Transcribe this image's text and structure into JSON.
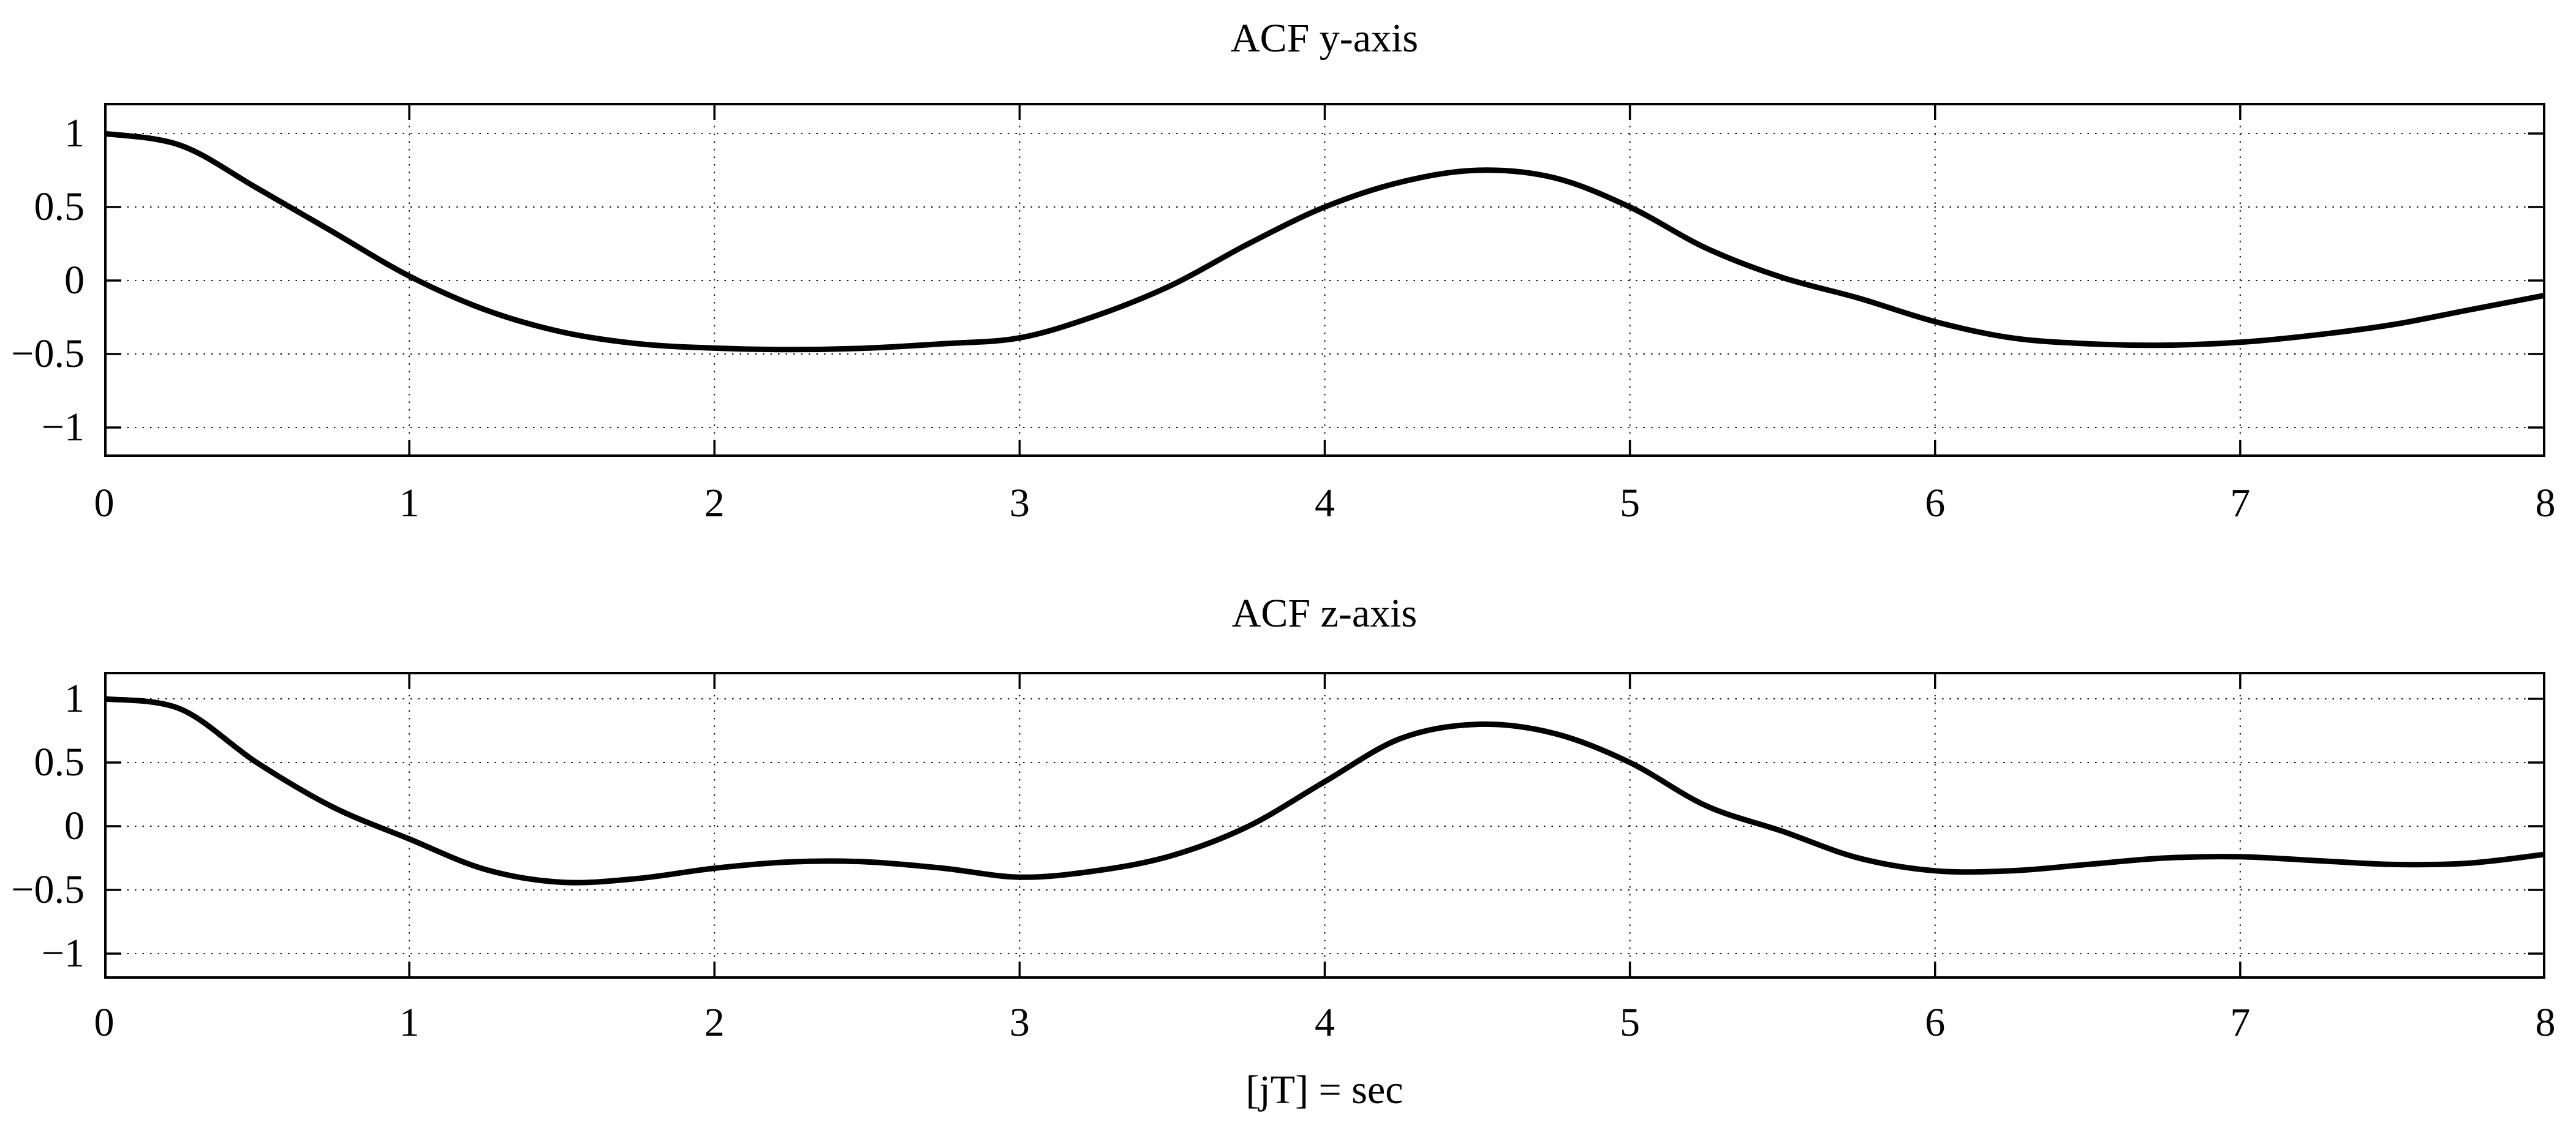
{
  "figure": {
    "background": "#ffffff",
    "foreground": "#000000",
    "grid_color": "#111111",
    "curve_color": "#000000"
  },
  "xlabel": "[jT] = sec",
  "subplots": [
    {
      "title": "ACF y-axis",
      "xtick_labels": [
        "0",
        "1",
        "2",
        "3",
        "4",
        "5",
        "6",
        "7",
        "8"
      ],
      "ytick_labels": [
        "1",
        "0.5",
        "0",
        "−0.5",
        "−1"
      ],
      "yticks": [
        1,
        0.5,
        0,
        -0.5,
        -1
      ]
    },
    {
      "title": "ACF z-axis",
      "xtick_labels": [
        "0",
        "1",
        "2",
        "3",
        "4",
        "5",
        "6",
        "7",
        "8"
      ],
      "ytick_labels": [
        "1",
        "0.5",
        "0",
        "−0.5",
        "−1"
      ],
      "yticks": [
        1,
        0.5,
        0,
        -0.5,
        -1
      ]
    }
  ],
  "chart_data": [
    {
      "type": "line",
      "title": "ACF y-axis",
      "xlabel": "[jT] = sec",
      "ylabel": "",
      "xlim": [
        0,
        8
      ],
      "ylim": [
        -1.2,
        1.2
      ],
      "grid": true,
      "grid_style": "dotted",
      "legend": "none",
      "line_color": "#000000",
      "x": [
        0,
        0.25,
        0.5,
        0.75,
        1,
        1.25,
        1.5,
        1.75,
        2,
        2.25,
        2.5,
        2.75,
        3,
        3.25,
        3.5,
        3.75,
        4,
        4.25,
        4.5,
        4.75,
        5,
        5.25,
        5.5,
        5.75,
        6,
        6.25,
        6.5,
        6.75,
        7,
        7.25,
        7.5,
        7.75,
        8
      ],
      "values": [
        1.0,
        0.92,
        0.63,
        0.33,
        0.03,
        -0.2,
        -0.35,
        -0.43,
        -0.46,
        -0.47,
        -0.46,
        -0.43,
        -0.39,
        -0.24,
        -0.03,
        0.25,
        0.5,
        0.67,
        0.75,
        0.7,
        0.5,
        0.22,
        0.02,
        -0.12,
        -0.28,
        -0.39,
        -0.43,
        -0.44,
        -0.42,
        -0.37,
        -0.3,
        -0.2,
        -0.1
      ],
      "notable_points": {
        "start": [
          0,
          1.0
        ],
        "first_zero_crossing": 1.0,
        "first_minimum": [
          2.2,
          -0.47
        ],
        "secondary_peak": [
          4.56,
          0.75
        ],
        "second_minimum": [
          6.65,
          -0.44
        ],
        "end": [
          8,
          -0.1
        ]
      }
    },
    {
      "type": "line",
      "title": "ACF z-axis",
      "xlabel": "[jT] = sec",
      "ylabel": "",
      "xlim": [
        0,
        8
      ],
      "ylim": [
        -1.2,
        1.2
      ],
      "grid": true,
      "grid_style": "dotted",
      "legend": "none",
      "line_color": "#000000",
      "x": [
        0,
        0.25,
        0.5,
        0.75,
        1,
        1.25,
        1.5,
        1.75,
        2,
        2.25,
        2.5,
        2.75,
        3,
        3.25,
        3.5,
        3.75,
        4,
        4.25,
        4.5,
        4.75,
        5,
        5.25,
        5.5,
        5.75,
        6,
        6.25,
        6.5,
        6.75,
        7,
        7.25,
        7.5,
        7.75,
        8
      ],
      "values": [
        1.0,
        0.92,
        0.5,
        0.15,
        -0.1,
        -0.34,
        -0.44,
        -0.41,
        -0.33,
        -0.28,
        -0.28,
        -0.33,
        -0.4,
        -0.35,
        -0.23,
        0.0,
        0.35,
        0.69,
        0.8,
        0.73,
        0.5,
        0.16,
        -0.04,
        -0.25,
        -0.35,
        -0.35,
        -0.3,
        -0.25,
        -0.24,
        -0.27,
        -0.3,
        -0.29,
        -0.22
      ],
      "notable_points": {
        "start": [
          0,
          1.0
        ],
        "first_zero_crossing": 0.9,
        "first_minimum": [
          1.45,
          -0.44
        ],
        "local_max_1": [
          2.35,
          -0.28
        ],
        "local_min_2": [
          3.1,
          -0.4
        ],
        "secondary_peak": [
          4.57,
          0.8
        ],
        "third_minimum": [
          6.1,
          -0.36
        ],
        "local_max_2": [
          6.9,
          -0.24
        ],
        "end": [
          8,
          -0.22
        ]
      }
    }
  ]
}
